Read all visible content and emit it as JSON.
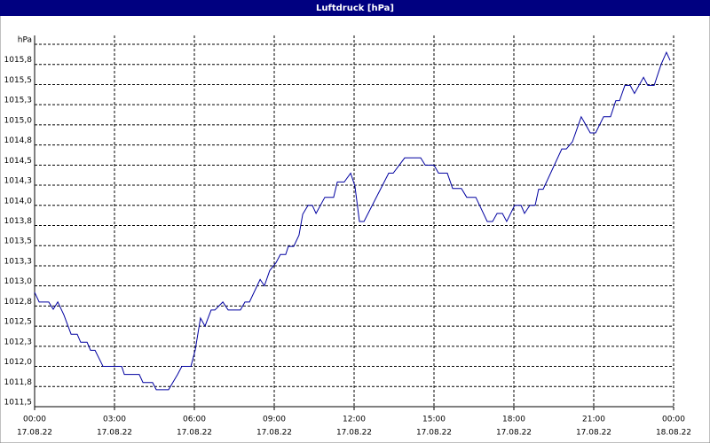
{
  "chart_data": {
    "type": "line",
    "title": "Luftdruck [hPa]",
    "x": [
      0,
      0.17,
      0.53,
      0.7,
      0.87,
      1.1,
      1.37,
      1.6,
      1.73,
      1.97,
      2.1,
      2.27,
      2.57,
      3.27,
      3.37,
      3.93,
      4.07,
      4.43,
      4.57,
      5.03,
      5.37,
      5.53,
      5.87,
      6.03,
      6.23,
      6.4,
      6.63,
      6.77,
      7.07,
      7.27,
      7.73,
      7.9,
      8.07,
      8.47,
      8.63,
      8.83,
      9.07,
      9.23,
      9.43,
      9.53,
      9.73,
      9.93,
      10.07,
      10.27,
      10.43,
      10.57,
      10.9,
      11.23,
      11.37,
      11.63,
      11.87,
      12.03,
      12.2,
      12.37,
      13.3,
      13.47,
      13.9,
      14.5,
      14.67,
      15.0,
      15.17,
      15.5,
      15.7,
      16.03,
      16.23,
      16.57,
      17.0,
      17.2,
      17.37,
      17.57,
      17.73,
      18.03,
      18.27,
      18.4,
      18.6,
      18.8,
      18.93,
      19.1,
      19.8,
      19.97,
      20.2,
      20.53,
      20.7,
      20.87,
      21.07,
      21.37,
      21.63,
      21.83,
      21.97,
      22.17,
      22.37,
      22.53,
      22.87,
      23.03,
      23.27,
      23.53,
      23.73,
      23.87
    ],
    "values": [
      1012.92,
      1012.8,
      1012.8,
      1012.71,
      1012.8,
      1012.64,
      1012.4,
      1012.4,
      1012.3,
      1012.3,
      1012.2,
      1012.2,
      1012.0,
      1012.0,
      1011.9,
      1011.9,
      1011.8,
      1011.8,
      1011.71,
      1011.71,
      1011.9,
      1012.0,
      1012.0,
      1012.2,
      1012.6,
      1012.5,
      1012.7,
      1012.7,
      1012.8,
      1012.7,
      1012.7,
      1012.8,
      1012.8,
      1013.08,
      1013.0,
      1013.19,
      1013.29,
      1013.39,
      1013.39,
      1013.49,
      1013.49,
      1013.63,
      1013.89,
      1014.0,
      1014.0,
      1013.9,
      1014.1,
      1014.1,
      1014.29,
      1014.29,
      1014.4,
      1014.24,
      1013.8,
      1013.8,
      1014.4,
      1014.4,
      1014.59,
      1014.59,
      1014.5,
      1014.5,
      1014.4,
      1014.4,
      1014.21,
      1014.21,
      1014.1,
      1014.1,
      1013.8,
      1013.8,
      1013.9,
      1013.9,
      1013.8,
      1014.0,
      1014.0,
      1013.9,
      1014.0,
      1014.0,
      1014.2,
      1014.2,
      1014.7,
      1014.7,
      1014.79,
      1015.1,
      1015.0,
      1014.9,
      1014.9,
      1015.1,
      1015.1,
      1015.3,
      1015.3,
      1015.49,
      1015.49,
      1015.39,
      1015.59,
      1015.49,
      1015.49,
      1015.75,
      1015.9,
      1015.8
    ],
    "color": "#0000a0",
    "xlim": [
      0,
      24
    ],
    "xticks": [
      {
        "value": 0,
        "label": "00:00"
      },
      {
        "value": 3,
        "label": "03:00"
      },
      {
        "value": 6,
        "label": "06:00"
      },
      {
        "value": 9,
        "label": "09:00"
      },
      {
        "value": 12,
        "label": "12:00"
      },
      {
        "value": 15,
        "label": "15:00"
      },
      {
        "value": 18,
        "label": "18:00"
      },
      {
        "value": 21,
        "label": "21:00"
      },
      {
        "value": 24,
        "label": "00:00"
      }
    ],
    "xtick_dates": [
      "17.08.22",
      "17.08.22",
      "17.08.22",
      "17.08.22",
      "17.08.22",
      "17.08.22",
      "17.08.22",
      "17.08.22",
      "18.08.22"
    ],
    "ylim": [
      1011.5,
      1016.0
    ],
    "yticks": [
      {
        "value": 1011.5,
        "label": "1011,5"
      },
      {
        "value": 1011.75,
        "label": "1011,8"
      },
      {
        "value": 1012.0,
        "label": "1012,0"
      },
      {
        "value": 1012.25,
        "label": "1012,3"
      },
      {
        "value": 1012.5,
        "label": "1012,5"
      },
      {
        "value": 1012.75,
        "label": "1012,8"
      },
      {
        "value": 1013.0,
        "label": "1013,0"
      },
      {
        "value": 1013.25,
        "label": "1013,3"
      },
      {
        "value": 1013.5,
        "label": "1013,5"
      },
      {
        "value": 1013.75,
        "label": "1013,8"
      },
      {
        "value": 1014.0,
        "label": "1014,0"
      },
      {
        "value": 1014.25,
        "label": "1014,3"
      },
      {
        "value": 1014.5,
        "label": "1014,5"
      },
      {
        "value": 1014.75,
        "label": "1014,8"
      },
      {
        "value": 1015.0,
        "label": "1015,0"
      },
      {
        "value": 1015.25,
        "label": "1015,3"
      },
      {
        "value": 1015.5,
        "label": "1015,5"
      },
      {
        "value": 1015.75,
        "label": "1015,8"
      },
      {
        "value": 1016.0,
        "label": "hPa"
      }
    ],
    "grid": true
  }
}
